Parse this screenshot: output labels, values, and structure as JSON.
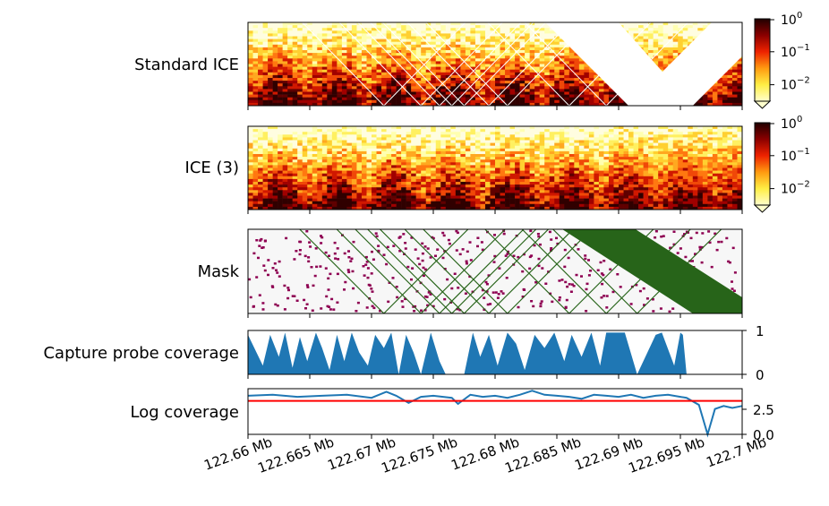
{
  "chart_data": {
    "type": "composite",
    "x_axis": {
      "range_mb": [
        122.66,
        122.7
      ],
      "tick_values": [
        122.66,
        122.665,
        122.67,
        122.675,
        122.68,
        122.685,
        122.69,
        122.695,
        122.7
      ],
      "tick_labels": [
        "122.66 Mb",
        "122.665 Mb",
        "122.67 Mb",
        "122.675 Mb",
        "122.68 Mb",
        "122.685 Mb",
        "122.69 Mb",
        "122.695 Mb",
        "122.7 Mb"
      ]
    },
    "panels": [
      {
        "label": "Standard ICE",
        "type": "heatmap",
        "colormap": "afmhot_r (white-yellow-orange-red-black)",
        "scale": "log",
        "colorbar": {
          "ticks": [
            "10",
            "10",
            "10"
          ],
          "exponents": [
            "0",
            "−1",
            "−2"
          ],
          "values": [
            1,
            0.1,
            0.01
          ]
        },
        "masked_diagonals_mb": [
          122.671,
          122.674,
          122.6755,
          122.6765,
          122.6775,
          122.6795,
          122.681,
          122.686,
          122.689,
          122.6915
        ],
        "masked_wide_band_mb": [
          122.6908,
          122.696
        ]
      },
      {
        "label": "ICE (3)",
        "type": "heatmap",
        "colormap": "afmhot_r (white-yellow-orange-red-black)",
        "scale": "log",
        "colorbar": {
          "ticks": [
            "10",
            "10",
            "10"
          ],
          "exponents": [
            "0",
            "−1",
            "−2"
          ],
          "values": [
            1,
            0.1,
            0.01
          ]
        }
      },
      {
        "label": "Mask",
        "type": "heatmap",
        "colors": {
          "background": "#f7f7f7",
          "masked_pixel": "#8e0152",
          "masked_bin": "#276419"
        }
      },
      {
        "label": "Capture probe coverage",
        "type": "area",
        "color": "#1f77b4",
        "ylim": [
          0,
          1
        ],
        "yticks": [
          "1",
          "0"
        ],
        "x_mb": [
          122.66,
          122.6612,
          122.6618,
          122.6625,
          122.663,
          122.6636,
          122.6642,
          122.6648,
          122.6655,
          122.666,
          122.6666,
          122.6672,
          122.6678,
          122.6684,
          122.669,
          122.6697,
          122.6703,
          122.671,
          122.6716,
          122.6722,
          122.6728,
          122.6734,
          122.674,
          122.6748,
          122.6755,
          122.676,
          122.6775,
          122.6782,
          122.6788,
          122.6795,
          122.6802,
          122.681,
          122.6817,
          122.6824,
          122.6832,
          122.684,
          122.6848,
          122.6856,
          122.6862,
          122.687,
          122.6878,
          122.6885,
          122.689,
          122.6905,
          122.6915,
          122.693,
          122.6935,
          122.6945,
          122.695,
          122.6952,
          122.6955,
          122.7
        ],
        "values": [
          0.9,
          0.2,
          0.9,
          0.4,
          0.95,
          0.15,
          0.85,
          0.3,
          0.95,
          0.6,
          0.1,
          0.9,
          0.3,
          0.95,
          0.5,
          0.2,
          0.9,
          0.6,
          0.95,
          0.0,
          0.9,
          0.5,
          0.0,
          0.95,
          0.3,
          0.0,
          0.0,
          0.95,
          0.4,
          0.9,
          0.2,
          0.95,
          0.7,
          0.1,
          0.9,
          0.6,
          0.95,
          0.3,
          0.9,
          0.4,
          0.95,
          0.2,
          0.95,
          0.95,
          0.0,
          0.9,
          0.95,
          0.2,
          0.95,
          0.9,
          0.0,
          0.0
        ]
      },
      {
        "label": "Log coverage",
        "type": "line",
        "color": "#1f77b4",
        "threshold": {
          "value": 3.3,
          "color": "#ff0000"
        },
        "ylim": [
          0,
          4.5
        ],
        "yticks": [
          "2.5",
          "0.0"
        ],
        "x_mb": [
          122.66,
          122.662,
          122.664,
          122.666,
          122.668,
          122.67,
          122.6712,
          122.672,
          122.673,
          122.674,
          122.675,
          122.6765,
          122.677,
          122.678,
          122.679,
          122.68,
          122.681,
          122.682,
          122.683,
          122.684,
          122.685,
          122.686,
          122.687,
          122.688,
          122.689,
          122.69,
          122.691,
          122.692,
          122.693,
          122.694,
          122.695,
          122.6955,
          122.6965,
          122.6972,
          122.6978,
          122.6985,
          122.6992,
          122.7
        ],
        "values": [
          3.8,
          3.9,
          3.7,
          3.8,
          3.9,
          3.6,
          4.2,
          3.8,
          3.1,
          3.7,
          3.8,
          3.6,
          3.0,
          3.9,
          3.7,
          3.8,
          3.6,
          3.9,
          4.3,
          3.9,
          3.8,
          3.7,
          3.5,
          3.9,
          3.8,
          3.7,
          3.9,
          3.6,
          3.8,
          3.9,
          3.7,
          3.6,
          2.9,
          0.0,
          2.5,
          2.8,
          2.6,
          2.8
        ]
      }
    ]
  }
}
